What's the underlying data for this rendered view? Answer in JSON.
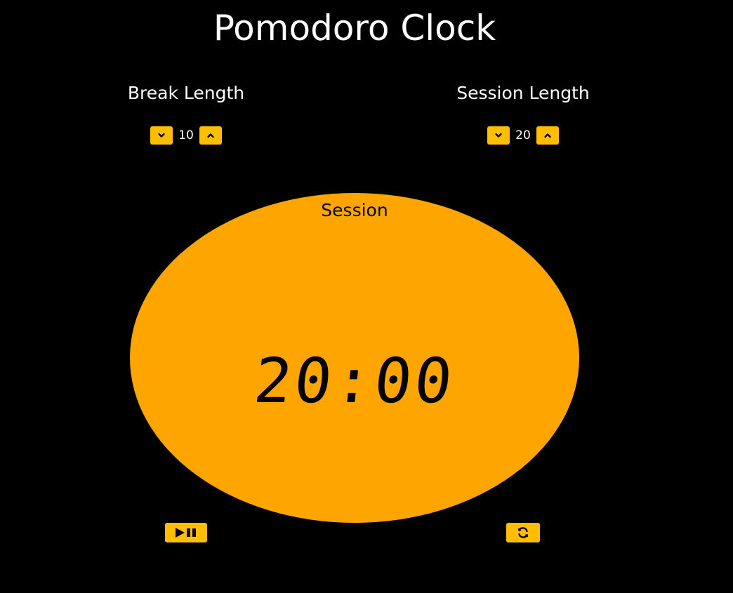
{
  "title": "Pomodoro Clock",
  "break": {
    "label": "Break Length",
    "value": "10",
    "decrement_icon": "chevron-down-icon",
    "increment_icon": "chevron-up-icon"
  },
  "session": {
    "label": "Session Length",
    "value": "20",
    "decrement_icon": "chevron-down-icon",
    "increment_icon": "chevron-up-icon"
  },
  "timer": {
    "label": "Session",
    "time": "20:00"
  },
  "actions": {
    "play_pause_icon": "play-pause-icon",
    "reset_icon": "refresh-icon"
  },
  "colors": {
    "background": "#000000",
    "timer_circle": "#ffa500",
    "button": "#ffbf00",
    "text": "#ffffff",
    "timer_text": "#000000"
  }
}
